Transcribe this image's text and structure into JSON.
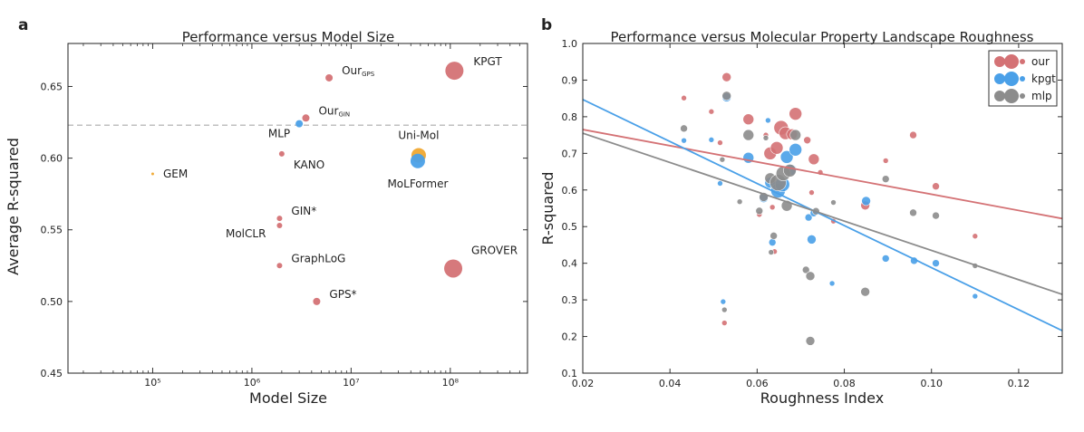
{
  "chart_data": [
    {
      "panel_label": "a",
      "type": "scatter",
      "title": "Performance versus Model Size",
      "xlabel": "Model Size",
      "ylabel": "Average R-squared",
      "xscale": "log",
      "xlim": [
        14000,
        600000000
      ],
      "ylim": [
        0.45,
        0.68
      ],
      "xticks": [
        {
          "v": 100000,
          "label": "10⁵"
        },
        {
          "v": 1000000,
          "label": "10⁶"
        },
        {
          "v": 10000000,
          "label": "10⁷"
        },
        {
          "v": 100000000,
          "label": "10⁸"
        }
      ],
      "yticks": [
        {
          "v": 0.45,
          "label": "0.45"
        },
        {
          "v": 0.5,
          "label": "0.50"
        },
        {
          "v": 0.55,
          "label": "0.55"
        },
        {
          "v": 0.6,
          "label": "0.60"
        },
        {
          "v": 0.65,
          "label": "0.65"
        }
      ],
      "reference_line": {
        "y": 0.623,
        "style": "dashed",
        "color": "#aaaaaa"
      },
      "points": [
        {
          "name": "Our_GPS",
          "main": "Our",
          "sub": "GPS",
          "x": 6000000,
          "y": 0.656,
          "size": 4,
          "color": "#d47275",
          "label_side": "right"
        },
        {
          "name": "KPGT",
          "main": "KPGT",
          "x": 110000000,
          "y": 0.661,
          "size": 10,
          "color": "#d47275",
          "label_side": "right"
        },
        {
          "name": "Our_GIN",
          "main": "Our",
          "sub": "GIN",
          "x": 3500000,
          "y": 0.628,
          "size": 4,
          "color": "#d47275",
          "label_side": "right"
        },
        {
          "name": "MLP",
          "main": "MLP",
          "x": 3000000,
          "y": 0.624,
          "size": 4,
          "color": "#4aa0e8",
          "label_side": "left"
        },
        {
          "name": "Uni-Mol",
          "main": "Uni-Mol",
          "x": 48000000,
          "y": 0.602,
          "size": 8,
          "color": "#f0a830",
          "label_side": "above"
        },
        {
          "name": "MoLFormer",
          "main": "MoLFormer",
          "x": 47000000,
          "y": 0.598,
          "size": 8,
          "color": "#4aa0e8",
          "label_side": "below"
        },
        {
          "name": "KANO",
          "main": "KANO",
          "x": 2000000,
          "y": 0.603,
          "size": 3,
          "color": "#d47275",
          "label_side": "right"
        },
        {
          "name": "GEM",
          "main": "GEM",
          "x": 100000,
          "y": 0.589,
          "size": 1.5,
          "color": "#f0a830",
          "label_side": "right"
        },
        {
          "name": "GIN*",
          "main": "GIN*",
          "x": 1900000,
          "y": 0.558,
          "size": 3,
          "color": "#d47275",
          "label_side": "right"
        },
        {
          "name": "MolCLR",
          "main": "MolCLR",
          "x": 1900000,
          "y": 0.553,
          "size": 3,
          "color": "#d47275",
          "label_side": "left"
        },
        {
          "name": "GraphLoG",
          "main": "GraphLoG",
          "x": 1900000,
          "y": 0.525,
          "size": 3,
          "color": "#d47275",
          "label_side": "right"
        },
        {
          "name": "GROVER",
          "main": "GROVER",
          "x": 107000000,
          "y": 0.523,
          "size": 10,
          "color": "#d47275",
          "label_side": "right"
        },
        {
          "name": "GPS*",
          "main": "GPS*",
          "x": 4500000,
          "y": 0.5,
          "size": 4,
          "color": "#d47275",
          "label_side": "right"
        }
      ]
    },
    {
      "panel_label": "b",
      "type": "scatter",
      "title": "Performance versus Molecular Property Landscape Roughness",
      "xlabel": "Roughness Index",
      "ylabel": "R-squared",
      "xlim": [
        0.02,
        0.13
      ],
      "ylim": [
        0.1,
        1.0
      ],
      "xticks": [
        0.02,
        0.04,
        0.06,
        0.08,
        0.1,
        0.12
      ],
      "xtick_labels": [
        "0.02",
        "0.04",
        "0.06",
        "0.08",
        "0.10",
        "0.12"
      ],
      "yticks": [
        0.1,
        0.2,
        0.3,
        0.4,
        0.5,
        0.6,
        0.7,
        0.8,
        0.9,
        1.0
      ],
      "ytick_labels": [
        "0.1",
        "0.2",
        "0.3",
        "0.4",
        "0.5",
        "0.6",
        "0.7",
        "0.8",
        "0.9",
        "1.0"
      ],
      "legend": {
        "position": "top-right",
        "entries": [
          {
            "label": "our",
            "color": "#d47275"
          },
          {
            "label": "kpgt",
            "color": "#4aa0e8"
          },
          {
            "label": "mlp",
            "color": "#8c8c8c"
          }
        ]
      },
      "series": [
        {
          "name": "our",
          "color": "#d47275",
          "fit": {
            "x0": 0.02,
            "y0": 0.765,
            "x1": 0.13,
            "y1": 0.522
          },
          "points": [
            [
              0.0432,
              0.851,
              3
            ],
            [
              0.0495,
              0.814,
              3
            ],
            [
              0.0515,
              0.729,
              3
            ],
            [
              0.0525,
              0.237,
              3
            ],
            [
              0.053,
              0.908,
              5
            ],
            [
              0.058,
              0.793,
              6
            ],
            [
              0.0605,
              0.533,
              3
            ],
            [
              0.062,
              0.75,
              3
            ],
            [
              0.063,
              0.7,
              7
            ],
            [
              0.0635,
              0.553,
              3
            ],
            [
              0.064,
              0.432,
              3
            ],
            [
              0.0645,
              0.715,
              7
            ],
            [
              0.0655,
              0.77,
              8
            ],
            [
              0.0665,
              0.755,
              7
            ],
            [
              0.068,
              0.752,
              6
            ],
            [
              0.0688,
              0.808,
              7
            ],
            [
              0.0715,
              0.736,
              4
            ],
            [
              0.0725,
              0.593,
              3
            ],
            [
              0.073,
              0.684,
              6
            ],
            [
              0.0745,
              0.648,
              3
            ],
            [
              0.0775,
              0.515,
              3
            ],
            [
              0.0848,
              0.558,
              5
            ],
            [
              0.0895,
              0.68,
              3
            ],
            [
              0.0958,
              0.75,
              4
            ],
            [
              0.101,
              0.61,
              4
            ],
            [
              0.11,
              0.474,
              3
            ]
          ]
        },
        {
          "name": "kpgt",
          "color": "#4aa0e8",
          "fit": {
            "x0": 0.02,
            "y0": 0.847,
            "x1": 0.13,
            "y1": 0.216
          },
          "points": [
            [
              0.0432,
              0.735,
              3
            ],
            [
              0.0495,
              0.737,
              3
            ],
            [
              0.0515,
              0.618,
              3
            ],
            [
              0.0522,
              0.295,
              3
            ],
            [
              0.053,
              0.853,
              5
            ],
            [
              0.058,
              0.688,
              6
            ],
            [
              0.0615,
              0.578,
              5
            ],
            [
              0.0625,
              0.79,
              3
            ],
            [
              0.063,
              0.62,
              6
            ],
            [
              0.0635,
              0.457,
              4
            ],
            [
              0.0648,
              0.598,
              8
            ],
            [
              0.0658,
              0.615,
              8
            ],
            [
              0.0668,
              0.69,
              7
            ],
            [
              0.0678,
              0.655,
              6
            ],
            [
              0.0688,
              0.71,
              7
            ],
            [
              0.0718,
              0.525,
              4
            ],
            [
              0.0725,
              0.465,
              5
            ],
            [
              0.073,
              0.537,
              4
            ],
            [
              0.0772,
              0.345,
              3
            ],
            [
              0.085,
              0.57,
              5
            ],
            [
              0.0895,
              0.413,
              4
            ],
            [
              0.096,
              0.407,
              4
            ],
            [
              0.101,
              0.4,
              4
            ],
            [
              0.11,
              0.31,
              3
            ]
          ]
        },
        {
          "name": "mlp",
          "color": "#8c8c8c",
          "fit": {
            "x0": 0.02,
            "y0": 0.755,
            "x1": 0.13,
            "y1": 0.315
          },
          "points": [
            [
              0.0432,
              0.768,
              4
            ],
            [
              0.052,
              0.683,
              3
            ],
            [
              0.0525,
              0.273,
              3
            ],
            [
              0.053,
              0.857,
              5
            ],
            [
              0.056,
              0.568,
              3
            ],
            [
              0.058,
              0.75,
              6
            ],
            [
              0.0605,
              0.543,
              4
            ],
            [
              0.0615,
              0.581,
              5
            ],
            [
              0.062,
              0.742,
              3
            ],
            [
              0.063,
              0.632,
              6
            ],
            [
              0.0632,
              0.43,
              3
            ],
            [
              0.0638,
              0.475,
              4
            ],
            [
              0.0648,
              0.62,
              9
            ],
            [
              0.066,
              0.645,
              8
            ],
            [
              0.0668,
              0.557,
              6
            ],
            [
              0.0675,
              0.653,
              7
            ],
            [
              0.0688,
              0.75,
              6
            ],
            [
              0.0712,
              0.382,
              4
            ],
            [
              0.0722,
              0.365,
              5
            ],
            [
              0.0722,
              0.188,
              5
            ],
            [
              0.0735,
              0.542,
              4
            ],
            [
              0.0775,
              0.566,
              3
            ],
            [
              0.0848,
              0.322,
              5
            ],
            [
              0.0895,
              0.63,
              4
            ],
            [
              0.0958,
              0.538,
              4
            ],
            [
              0.101,
              0.53,
              4
            ],
            [
              0.11,
              0.393,
              3
            ]
          ]
        }
      ]
    }
  ]
}
